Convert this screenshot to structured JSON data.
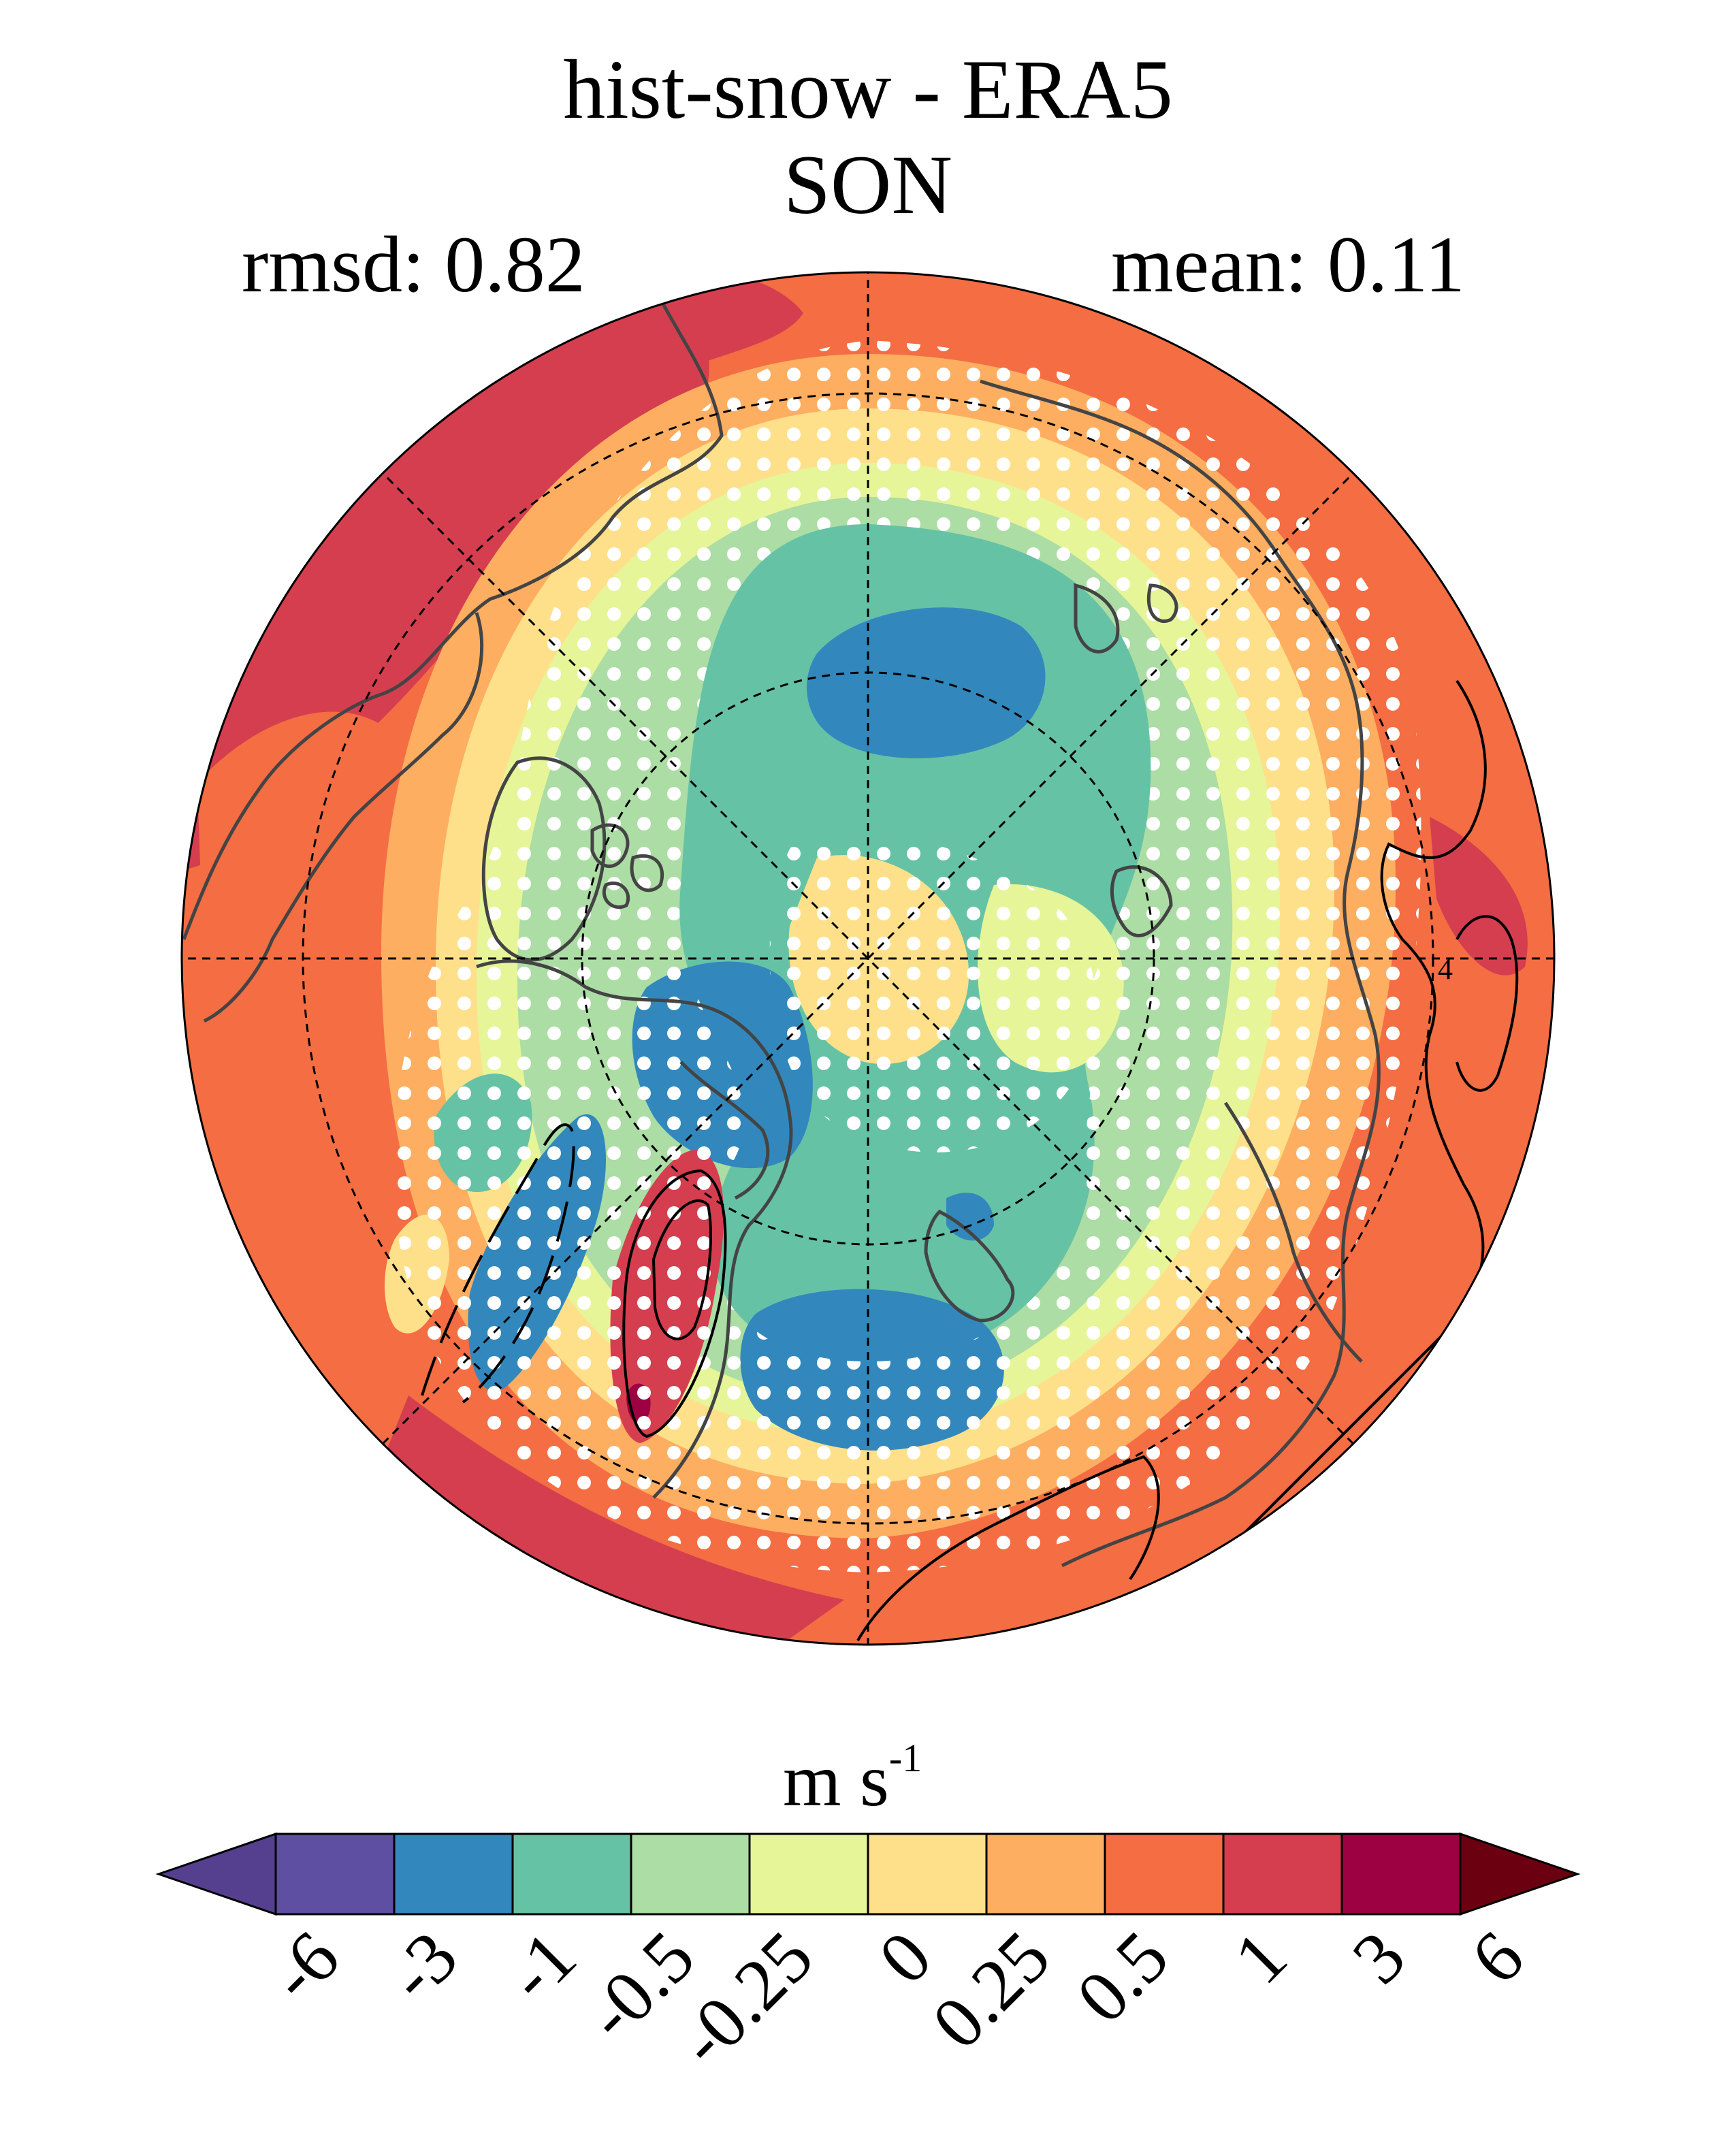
{
  "title": "hist-snow - ERA5",
  "subtitle": "SON",
  "rmsd_text": "rmsd: 0.82",
  "mean_text": "mean: 0.11",
  "map": {
    "projection": "north polar stereographic",
    "variable_units": "m s",
    "units_exponent": "-1",
    "stippling": "white dots (significance)",
    "contour_label": "4",
    "grid": true
  },
  "colorbar": {
    "ticks": [
      "-6",
      "-3",
      "-1",
      "-0.5",
      "-0.25",
      "0",
      "0.25",
      "0.5",
      "1",
      "3",
      "6"
    ],
    "colors": [
      "#5e4fa2",
      "#3288bd",
      "#66c2a5",
      "#abdda4",
      "#e6f598",
      "#fee08b",
      "#fdae61",
      "#f46d43",
      "#d53e4f",
      "#9e0142"
    ],
    "under_color": "#55408f",
    "over_color": "#6a0010",
    "extend": "both"
  },
  "palette": {
    "dark_red": "#d53e4f",
    "orange": "#f46d43",
    "light_orange": "#fdae61",
    "yellow": "#fee08b",
    "yellow_green": "#e6f598",
    "light_green": "#abdda4",
    "teal": "#66c2a5",
    "blue": "#3288bd",
    "deep_red": "#9e0142"
  }
}
